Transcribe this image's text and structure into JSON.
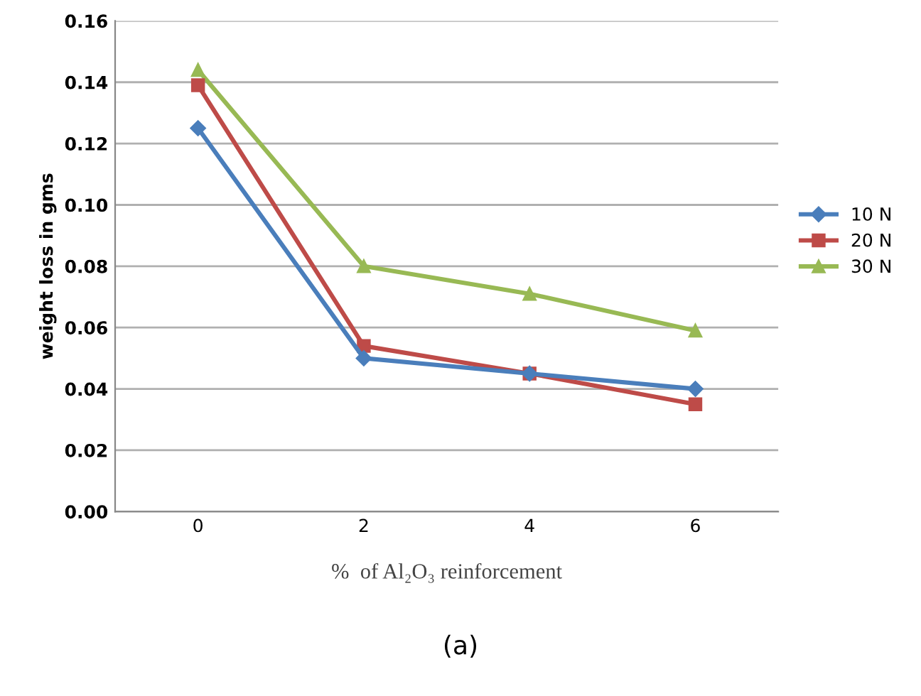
{
  "chart_data": {
    "type": "line",
    "xlabel": "%  of Al₂O₃ reinforcement",
    "ylabel": "weight loss in gms",
    "categories": [
      "0",
      "2",
      "4",
      "6"
    ],
    "series": [
      {
        "name": "10 N",
        "color": "#4a7ebb",
        "marker": "diamond",
        "values": [
          0.125,
          0.05,
          0.045,
          0.04
        ]
      },
      {
        "name": "20 N",
        "color": "#be4b48",
        "marker": "square",
        "values": [
          0.139,
          0.054,
          0.045,
          0.035
        ]
      },
      {
        "name": "30 N",
        "color": "#98b954",
        "marker": "triangle",
        "values": [
          0.144,
          0.08,
          0.071,
          0.059
        ]
      }
    ],
    "ylim": [
      0,
      0.16
    ],
    "yticks": [
      {
        "value": 0,
        "label": "0.00"
      },
      {
        "value": 0.02,
        "label": "0.02"
      },
      {
        "value": 0.04,
        "label": "0.04"
      },
      {
        "value": 0.06,
        "label": "0.06"
      },
      {
        "value": 0.08,
        "label": "0.08"
      },
      {
        "value": 0.1,
        "label": "0.10"
      },
      {
        "value": 0.12,
        "label": "0.12"
      },
      {
        "value": 0.14,
        "label": "0.14"
      },
      {
        "value": 0.16,
        "label": "0.16"
      }
    ],
    "grid": "y",
    "legend": "right",
    "line_style": "solid",
    "annotations": [
      "(a)"
    ]
  }
}
